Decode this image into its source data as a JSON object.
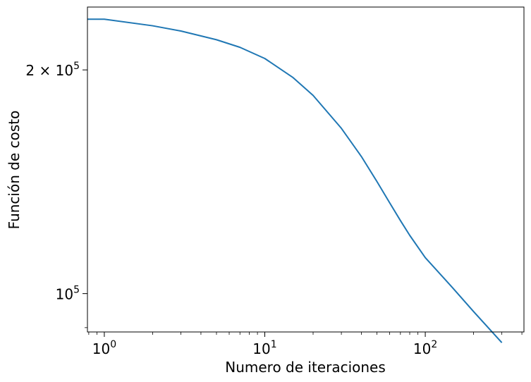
{
  "chart_data": {
    "type": "line",
    "xlabel": "Numero de iteraciones",
    "ylabel": "Función de costo",
    "xscale": "log",
    "yscale": "log",
    "xlim": [
      0.785,
      412
    ],
    "ylim": [
      88800,
      243000
    ],
    "grid": false,
    "x_ticks": [
      {
        "value": 1,
        "base": "10",
        "exp": "0"
      },
      {
        "value": 10,
        "base": "10",
        "exp": "1"
      },
      {
        "value": 100,
        "base": "10",
        "exp": "2"
      }
    ],
    "y_ticks": [
      {
        "value": 100000,
        "base": "10",
        "exp": "5",
        "prefix": ""
      },
      {
        "value": 200000,
        "base": "10",
        "exp": "5",
        "prefix": "2 × "
      }
    ],
    "series": [
      {
        "color": "#1f77b4",
        "x": [
          0.785,
          1,
          2,
          3,
          5,
          7,
          10,
          15,
          20,
          30,
          40,
          50,
          60,
          70,
          80,
          100,
          150,
          200,
          300
        ],
        "y": [
          234000,
          234000,
          229300,
          225600,
          219600,
          214500,
          207200,
          195300,
          184800,
          166900,
          152900,
          141500,
          132500,
          125400,
          119800,
          111800,
          101500,
          94600,
          85900
        ]
      }
    ]
  }
}
